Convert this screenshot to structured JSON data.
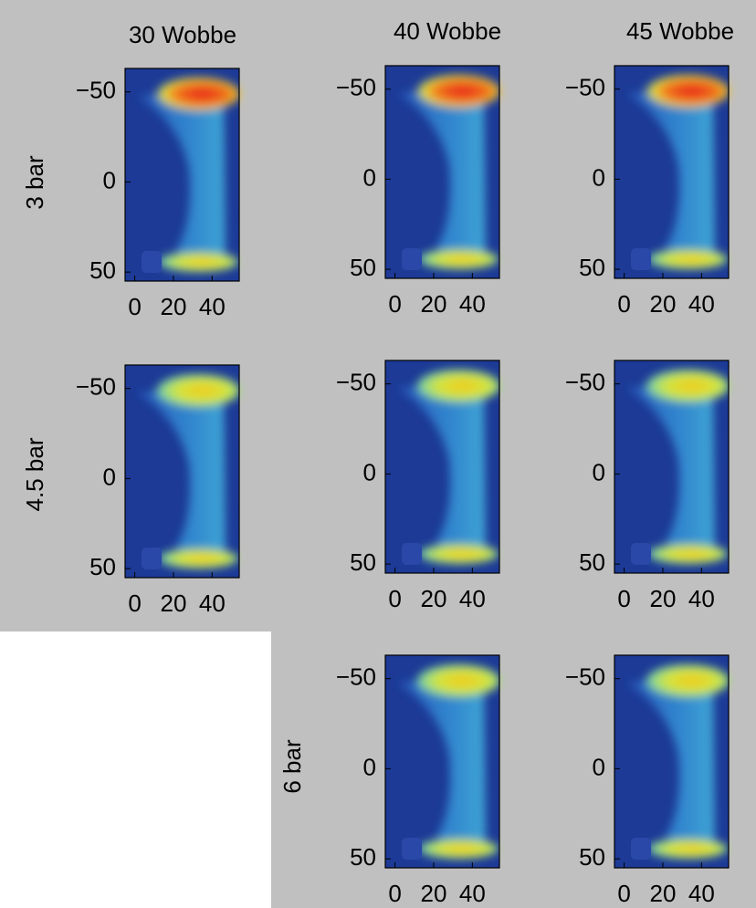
{
  "column_titles": [
    "30 Wobbe",
    "40 Wobbe",
    "45 Wobbe"
  ],
  "row_labels": [
    "3 bar",
    "4.5 bar",
    "6 bar"
  ],
  "chart_data": [
    {
      "type": "image",
      "xlim": [
        -5,
        54
      ],
      "ylim": [
        55,
        -63
      ],
      "xticks": [
        0,
        20,
        40
      ],
      "yticks": [
        {
          "value": -50,
          "label": "−50"
        },
        0,
        50
      ]
    },
    {
      "type": "image",
      "xlim": [
        -5,
        54
      ],
      "ylim": [
        55,
        -63
      ],
      "xticks": [
        0,
        20,
        40
      ],
      "yticks": [
        {
          "value": -50,
          "label": "−50"
        },
        0,
        50
      ]
    },
    {
      "type": "image",
      "xlim": [
        -5,
        54
      ],
      "ylim": [
        55,
        -63
      ],
      "xticks": [
        0,
        20,
        40
      ],
      "yticks": [
        {
          "value": -50,
          "label": "−50"
        },
        0,
        50
      ]
    },
    {
      "type": "image",
      "xlim": [
        -5,
        54
      ],
      "ylim": [
        55,
        -63
      ],
      "xticks": [
        0,
        20,
        40
      ],
      "yticks": [
        {
          "value": -50,
          "label": "−50"
        },
        0,
        50
      ]
    },
    {
      "type": "image",
      "xlim": [
        -5,
        54
      ],
      "ylim": [
        55,
        -63
      ],
      "xticks": [
        0,
        20,
        40
      ],
      "yticks": [
        {
          "value": -50,
          "label": "−50"
        },
        0,
        50
      ]
    },
    {
      "type": "image",
      "xlim": [
        -5,
        54
      ],
      "ylim": [
        55,
        -63
      ],
      "xticks": [
        0,
        20,
        40
      ],
      "yticks": [
        {
          "value": -50,
          "label": "−50"
        },
        0,
        50
      ]
    },
    {
      "type": "image",
      "xlim": [
        -5,
        54
      ],
      "ylim": [
        55,
        -63
      ],
      "xticks": [
        0,
        20,
        40
      ],
      "yticks": [
        {
          "value": -50,
          "label": "−50"
        },
        0,
        50
      ]
    },
    {
      "type": "image",
      "xlim": [
        -5,
        54
      ],
      "ylim": [
        55,
        -63
      ],
      "xticks": [
        0,
        20,
        40
      ],
      "yticks": [
        {
          "value": -50,
          "label": "−50"
        },
        0,
        50
      ]
    }
  ]
}
